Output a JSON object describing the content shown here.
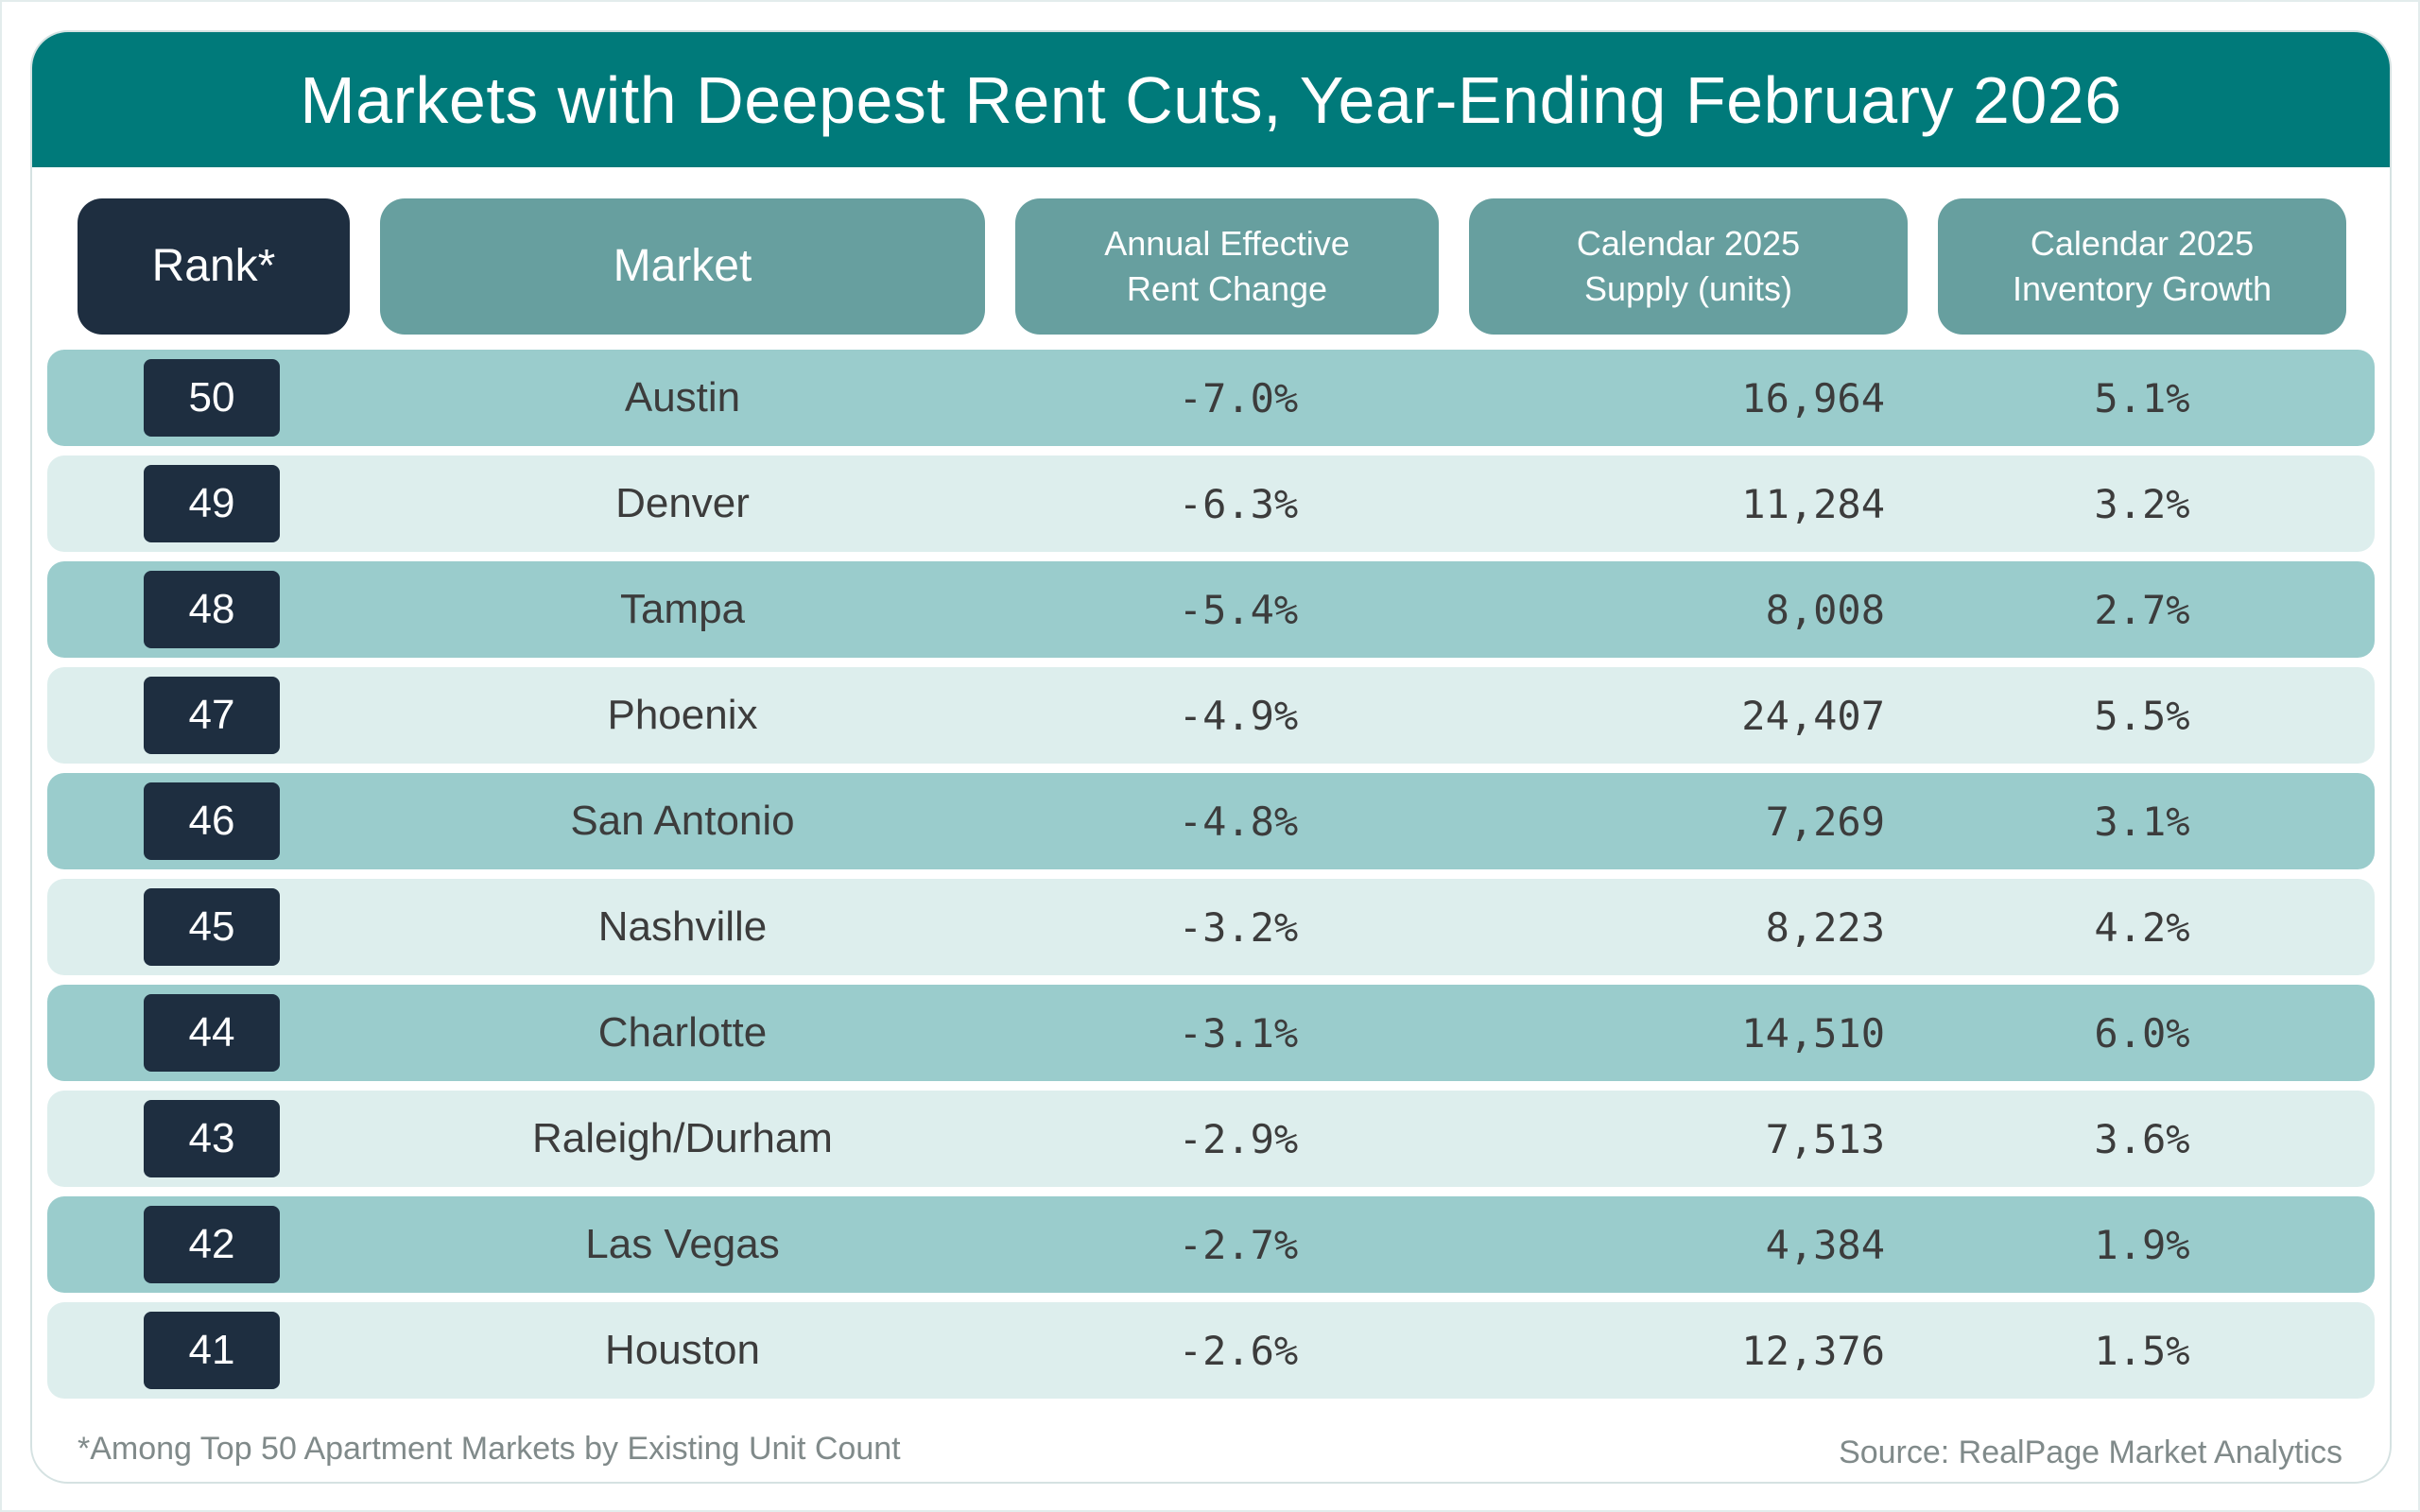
{
  "title": "Markets with Deepest Rent Cuts, Year-Ending February 2026",
  "headers": [
    "Rank*",
    "Market",
    "Annual Effective\nRent Change",
    "Calendar 2025\nSupply (units)",
    "Calendar 2025\nInventory Growth"
  ],
  "rows": [
    {
      "rank": "50",
      "market": "Austin",
      "rent_change": "-7.0%",
      "supply": "16,964",
      "inventory_growth": "5.1%"
    },
    {
      "rank": "49",
      "market": "Denver",
      "rent_change": "-6.3%",
      "supply": "11,284",
      "inventory_growth": "3.2%"
    },
    {
      "rank": "48",
      "market": "Tampa",
      "rent_change": "-5.4%",
      "supply": "8,008",
      "inventory_growth": "2.7%"
    },
    {
      "rank": "47",
      "market": "Phoenix",
      "rent_change": "-4.9%",
      "supply": "24,407",
      "inventory_growth": "5.5%"
    },
    {
      "rank": "46",
      "market": "San Antonio",
      "rent_change": "-4.8%",
      "supply": "7,269",
      "inventory_growth": "3.1%"
    },
    {
      "rank": "45",
      "market": "Nashville",
      "rent_change": "-3.2%",
      "supply": "8,223",
      "inventory_growth": "4.2%"
    },
    {
      "rank": "44",
      "market": "Charlotte",
      "rent_change": "-3.1%",
      "supply": "14,510",
      "inventory_growth": "6.0%"
    },
    {
      "rank": "43",
      "market": "Raleigh/Durham",
      "rent_change": "-2.9%",
      "supply": "7,513",
      "inventory_growth": "3.6%"
    },
    {
      "rank": "42",
      "market": "Las Vegas",
      "rent_change": "-2.7%",
      "supply": "4,384",
      "inventory_growth": "1.9%"
    },
    {
      "rank": "41",
      "market": "Houston",
      "rent_change": "-2.6%",
      "supply": "12,376",
      "inventory_growth": "1.5%"
    }
  ],
  "footnote": "*Among Top 50 Apartment Markets by Existing Unit Count",
  "source": "Source: RealPage Market Analytics",
  "colors": {
    "title_bar": "#007a7a",
    "header": "#679f9f",
    "rank": "#1e2e40",
    "row_dark": "#9acccc",
    "row_light": "#ddeeed"
  }
}
